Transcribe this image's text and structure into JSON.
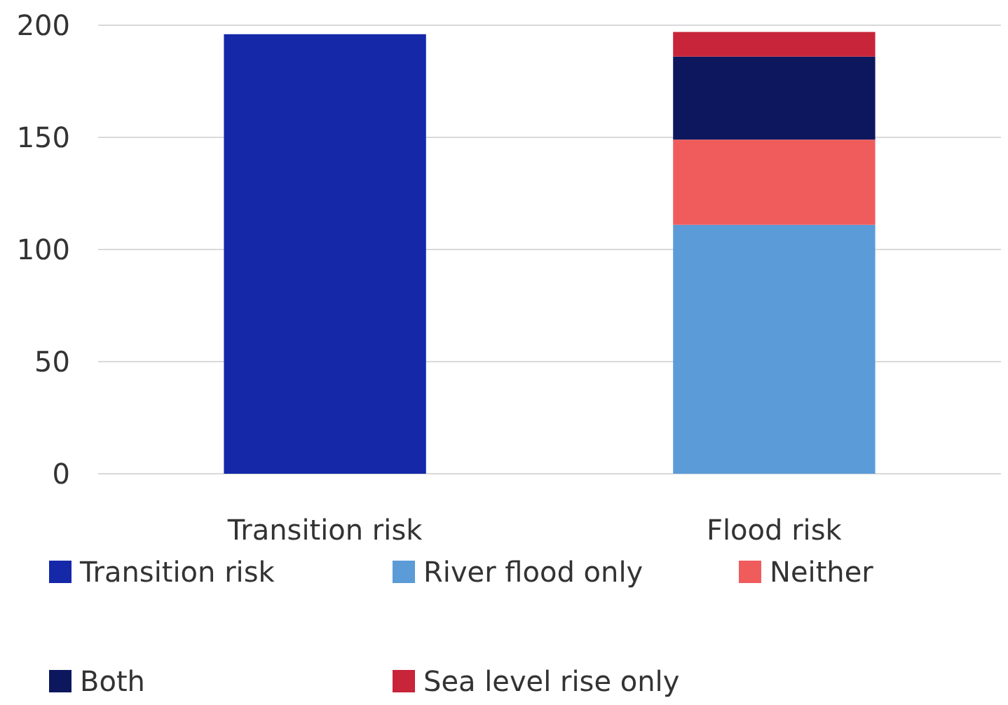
{
  "chart_data": {
    "type": "bar",
    "stacked": true,
    "categories": [
      "Transition risk",
      "Flood risk"
    ],
    "series": [
      {
        "name": "Transition risk",
        "color": "#1428a8",
        "values": [
          196,
          null
        ]
      },
      {
        "name": "River flood only",
        "color": "#5b9bd7",
        "values": [
          null,
          111
        ]
      },
      {
        "name": "Neither",
        "color": "#f05c5c",
        "values": [
          null,
          38
        ]
      },
      {
        "name": "Both",
        "color": "#0d175e",
        "values": [
          null,
          37
        ]
      },
      {
        "name": "Sea level rise only",
        "color": "#c8243a",
        "values": [
          null,
          11
        ]
      }
    ],
    "ylim": [
      0,
      200
    ],
    "yticks": [
      0,
      50,
      100,
      150,
      200
    ],
    "grid": "y",
    "legend": "bottom"
  }
}
